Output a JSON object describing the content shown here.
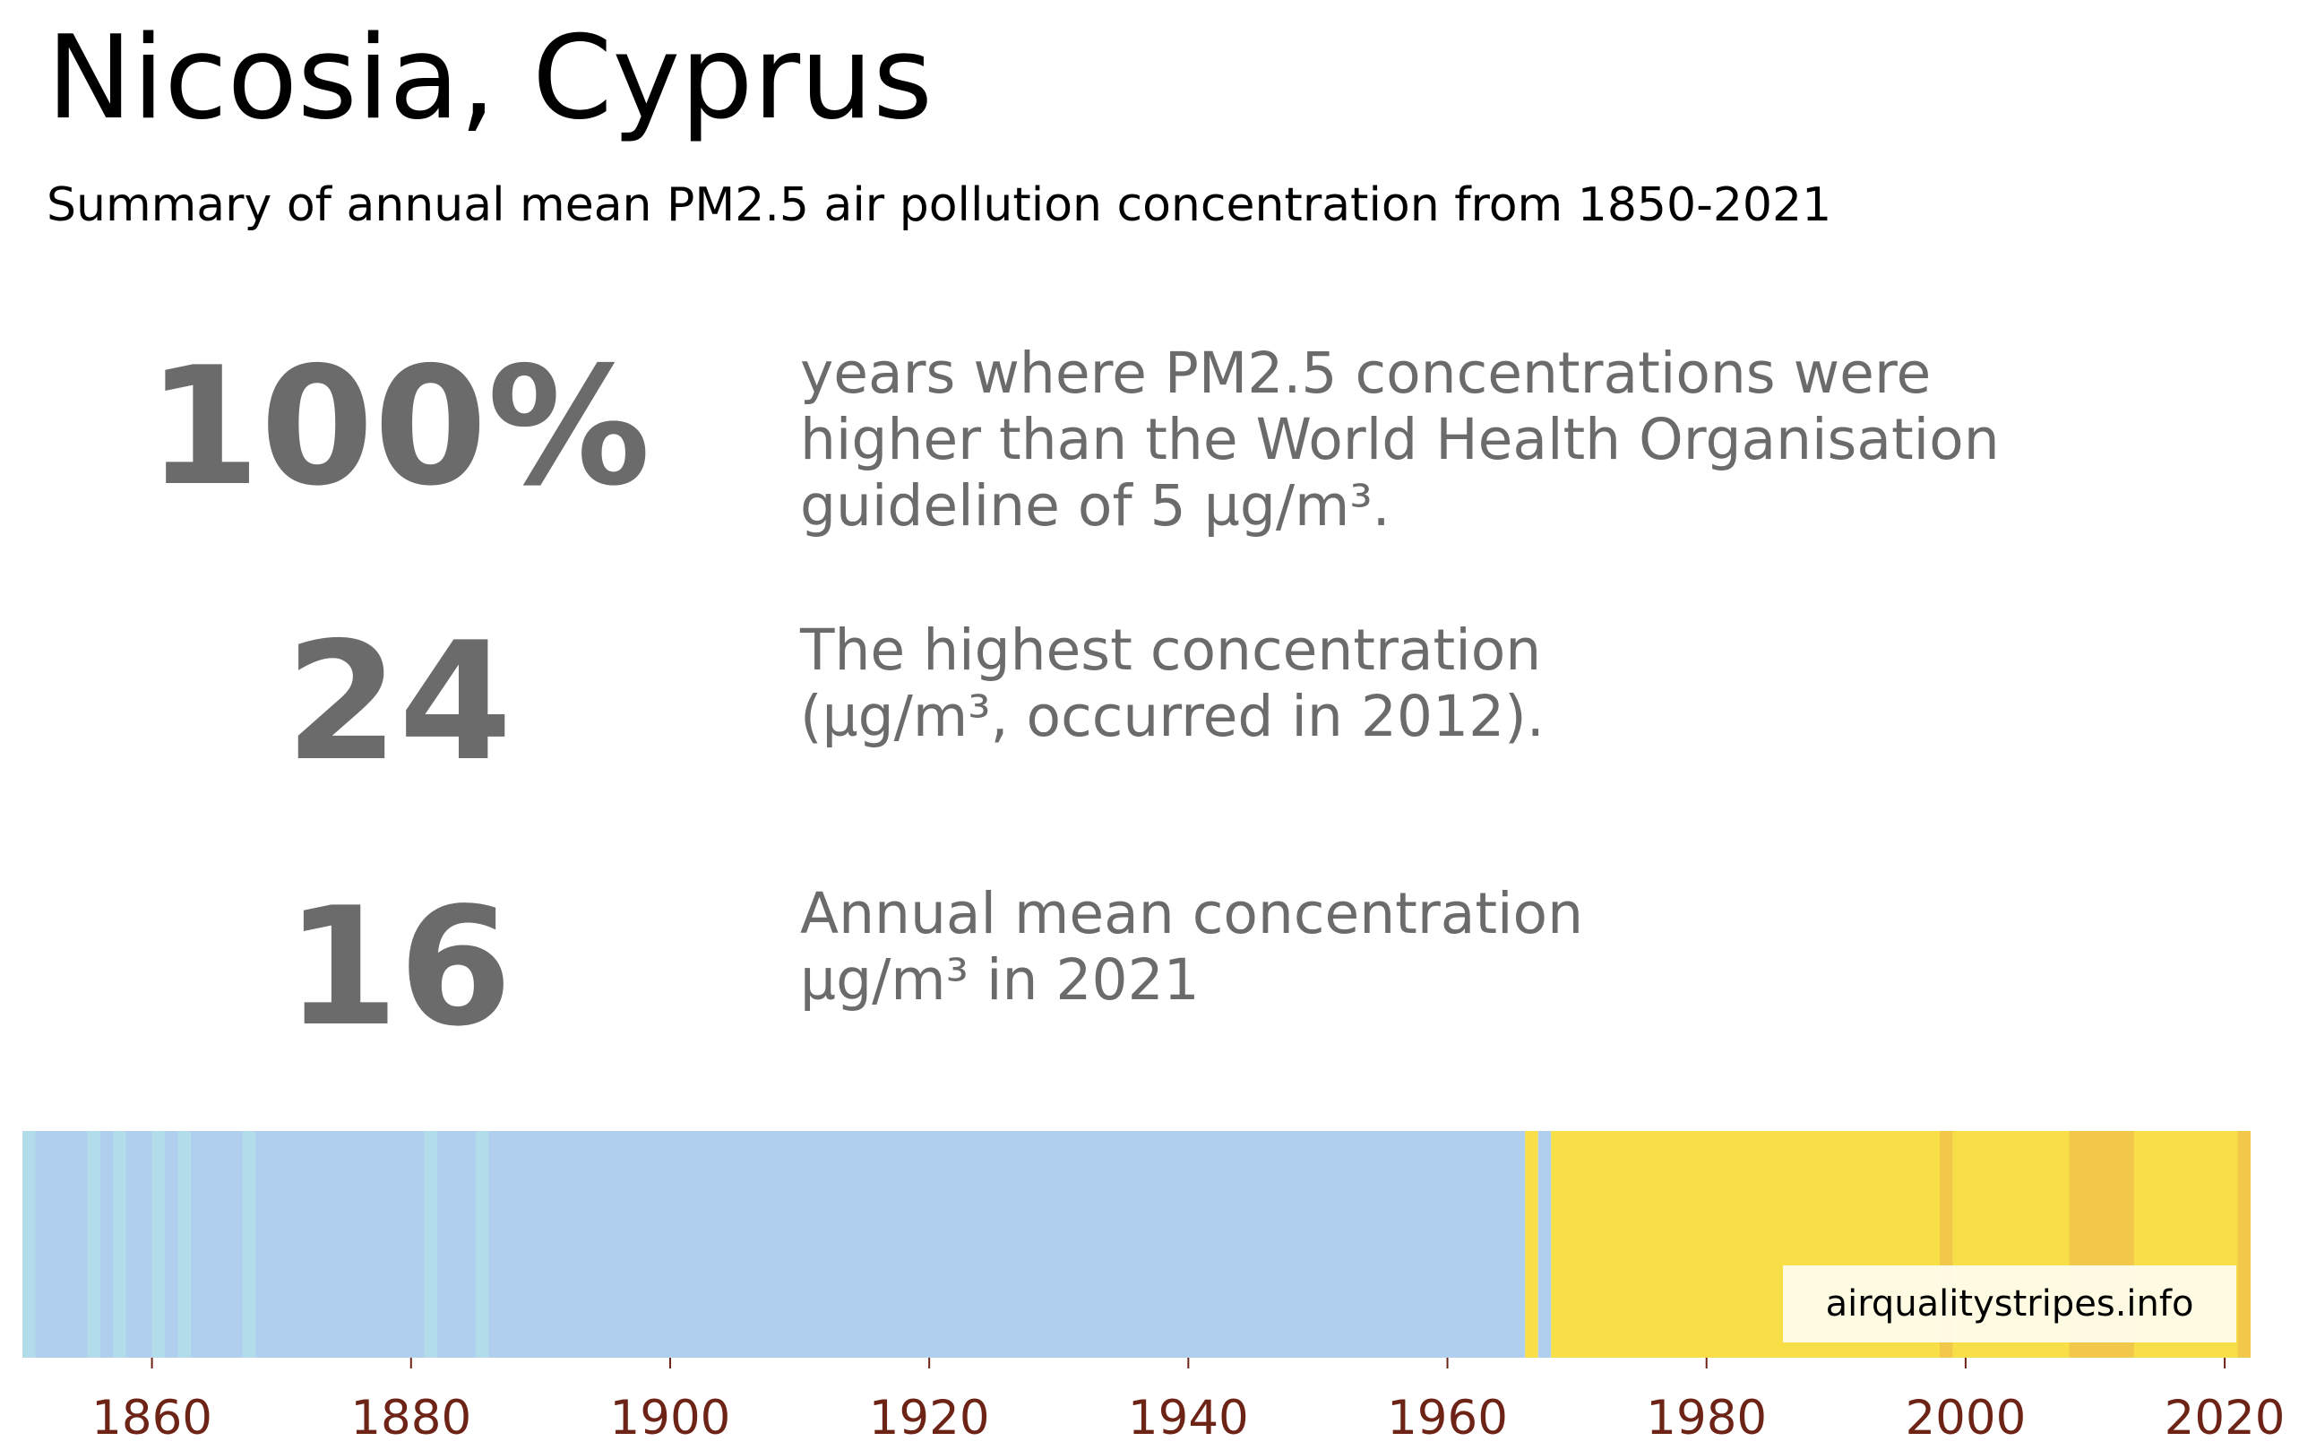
{
  "title": "Nicosia, Cyprus",
  "subtitle": "Summary of annual mean PM2.5 air pollution concentration from 1850-2021",
  "stats": [
    {
      "value": "100%",
      "lines": [
        "years where PM2.5 concentrations were",
        "higher than the World Health Organisation",
        "guideline of 5 µg/m³."
      ]
    },
    {
      "value": "24",
      "lines": [
        "The highest concentration",
        "(µg/m³, occurred in 2012)."
      ]
    },
    {
      "value": "16",
      "lines": [
        "Annual mean concentration",
        "µg/m³ in 2021"
      ]
    }
  ],
  "watermark": "airqualitystripes.info",
  "colors": {
    "low_blue": "#b0cfee",
    "low_blue_light": "#b3dcea",
    "mid_yellow": "#f8df48",
    "high_orange": "#f2c84a",
    "tick_label": "#6d2316",
    "stat_text": "#6b6b6b"
  },
  "chart_data": {
    "type": "heatmap",
    "x_ticks": [
      1860,
      1880,
      1900,
      1920,
      1940,
      1960,
      1980,
      2000,
      2020
    ],
    "xlim": [
      1850,
      2022
    ],
    "stripes": [
      {
        "start": 1850,
        "end": 1966,
        "color": "#b0cfee"
      },
      {
        "start": 1850,
        "end": 1851,
        "color": "#b3dcea"
      },
      {
        "start": 1855,
        "end": 1856,
        "color": "#b3dcea"
      },
      {
        "start": 1857,
        "end": 1858,
        "color": "#b3dcea"
      },
      {
        "start": 1860,
        "end": 1861,
        "color": "#b3dcea"
      },
      {
        "start": 1862,
        "end": 1863,
        "color": "#b3dcea"
      },
      {
        "start": 1867,
        "end": 1868,
        "color": "#b3dcea"
      },
      {
        "start": 1881,
        "end": 1882,
        "color": "#b3dcea"
      },
      {
        "start": 1885,
        "end": 1886,
        "color": "#b3dcea"
      },
      {
        "start": 1966,
        "end": 1967,
        "color": "#f8df48"
      },
      {
        "start": 1967,
        "end": 1968,
        "color": "#b0cfee"
      },
      {
        "start": 1968,
        "end": 2022,
        "color": "#f8df48"
      },
      {
        "start": 1998,
        "end": 1999,
        "color": "#f2c84a"
      },
      {
        "start": 2008,
        "end": 2013,
        "color": "#f2c84a"
      },
      {
        "start": 2021,
        "end": 2022,
        "color": "#f2c84a"
      }
    ]
  }
}
